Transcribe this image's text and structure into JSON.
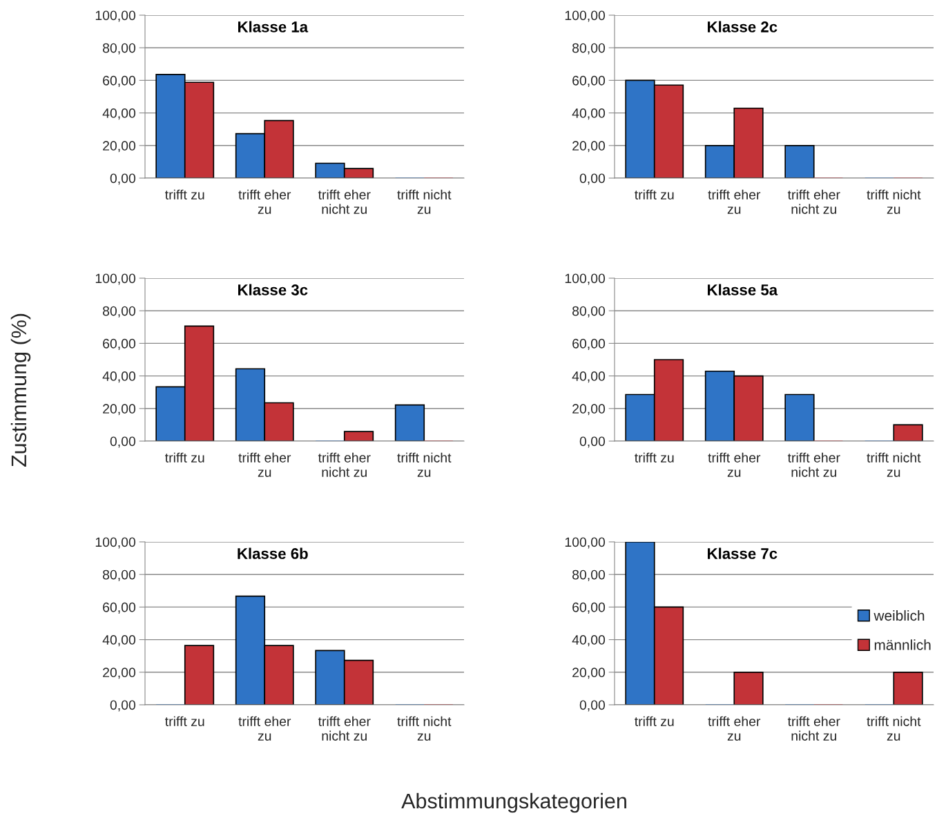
{
  "chart_data": [
    {
      "type": "bar",
      "title": "Klasse 1a",
      "categories": [
        "trifft zu",
        "trifft eher zu",
        "trifft eher nicht zu",
        "trifft nicht zu"
      ],
      "series": [
        {
          "color": "#2f74c6",
          "values": [
            63.6,
            27.3,
            9.1,
            0
          ]
        },
        {
          "color": "#c33338",
          "values": [
            58.8,
            35.3,
            5.9,
            0
          ]
        }
      ],
      "ylim": [
        0,
        100
      ],
      "yticks": [
        {
          "value": 0,
          "label": "0,00"
        },
        {
          "value": 20,
          "label": "20,00"
        },
        {
          "value": 40,
          "label": "40,00"
        },
        {
          "value": 60,
          "label": "60,00"
        },
        {
          "value": 80,
          "label": "80,00"
        },
        {
          "value": 100,
          "label": "100,00"
        }
      ],
      "grid": "y"
    },
    {
      "type": "bar",
      "title": "Klasse 2c",
      "categories": [
        "trifft zu",
        "trifft eher zu",
        "trifft eher nicht zu",
        "trifft nicht zu"
      ],
      "series": [
        {
          "color": "#2f74c6",
          "values": [
            60,
            20,
            20,
            0
          ]
        },
        {
          "color": "#c33338",
          "values": [
            57.1,
            42.9,
            0,
            0
          ]
        }
      ],
      "ylim": [
        0,
        100
      ],
      "yticks": [
        {
          "value": 0,
          "label": "0,00"
        },
        {
          "value": 20,
          "label": "20,00"
        },
        {
          "value": 40,
          "label": "40,00"
        },
        {
          "value": 60,
          "label": "60,00"
        },
        {
          "value": 80,
          "label": "80,00"
        },
        {
          "value": 100,
          "label": "100,00"
        }
      ],
      "grid": "y"
    },
    {
      "type": "bar",
      "title": "Klasse 3c",
      "ylabel": "Zustimmung (%)",
      "categories": [
        "trifft zu",
        "trifft eher zu",
        "trifft eher nicht zu",
        "trifft nicht zu"
      ],
      "series": [
        {
          "color": "#2f74c6",
          "values": [
            33.3,
            44.4,
            0,
            22.2
          ]
        },
        {
          "color": "#c33338",
          "values": [
            70.6,
            23.5,
            5.9,
            0
          ]
        }
      ],
      "ylim": [
        0,
        100
      ],
      "yticks": [
        {
          "value": 0,
          "label": "0,00"
        },
        {
          "value": 20,
          "label": "20,00"
        },
        {
          "value": 40,
          "label": "40,00"
        },
        {
          "value": 60,
          "label": "60,00"
        },
        {
          "value": 80,
          "label": "80,00"
        },
        {
          "value": 100,
          "label": "100,00"
        }
      ],
      "grid": "y"
    },
    {
      "type": "bar",
      "title": "Klasse 5a",
      "categories": [
        "trifft zu",
        "trifft eher zu",
        "trifft eher nicht zu",
        "trifft nicht zu"
      ],
      "series": [
        {
          "color": "#2f74c6",
          "values": [
            28.6,
            42.9,
            28.6,
            0
          ]
        },
        {
          "color": "#c33338",
          "values": [
            50,
            40,
            0,
            10
          ]
        }
      ],
      "ylim": [
        0,
        100
      ],
      "yticks": [
        {
          "value": 0,
          "label": "0,00"
        },
        {
          "value": 20,
          "label": "20,00"
        },
        {
          "value": 40,
          "label": "40,00"
        },
        {
          "value": 60,
          "label": "60,00"
        },
        {
          "value": 80,
          "label": "80,00"
        },
        {
          "value": 100,
          "label": "100,00"
        }
      ],
      "grid": "y"
    },
    {
      "type": "bar",
      "title": "Klasse 6b",
      "xlabel": "Abstimmungskategorien",
      "categories": [
        "trifft zu",
        "trifft eher zu",
        "trifft eher nicht zu",
        "trifft nicht zu"
      ],
      "series": [
        {
          "color": "#2f74c6",
          "values": [
            0,
            66.7,
            33.3,
            0
          ]
        },
        {
          "color": "#c33338",
          "values": [
            36.4,
            36.4,
            27.3,
            0
          ]
        }
      ],
      "ylim": [
        0,
        100
      ],
      "yticks": [
        {
          "value": 0,
          "label": "0,00"
        },
        {
          "value": 20,
          "label": "20,00"
        },
        {
          "value": 40,
          "label": "40,00"
        },
        {
          "value": 60,
          "label": "60,00"
        },
        {
          "value": 80,
          "label": "80,00"
        },
        {
          "value": 100,
          "label": "100,00"
        }
      ],
      "grid": "y"
    },
    {
      "type": "bar",
      "title": "Klasse 7c",
      "categories": [
        "trifft zu",
        "trifft eher zu",
        "trifft eher nicht zu",
        "trifft nicht zu"
      ],
      "series": [
        {
          "name": "weiblich",
          "color": "#2f74c6",
          "values": [
            100,
            0,
            0,
            0
          ]
        },
        {
          "name": "männlich",
          "color": "#c33338",
          "values": [
            60,
            20,
            0,
            20
          ]
        }
      ],
      "ylim": [
        0,
        100
      ],
      "yticks": [
        {
          "value": 0,
          "label": "0,00"
        },
        {
          "value": 20,
          "label": "20,00"
        },
        {
          "value": 40,
          "label": "40,00"
        },
        {
          "value": 60,
          "label": "60,00"
        },
        {
          "value": 80,
          "label": "80,00"
        },
        {
          "value": 100,
          "label": "100,00"
        }
      ],
      "grid": "y",
      "legend": "right"
    }
  ]
}
